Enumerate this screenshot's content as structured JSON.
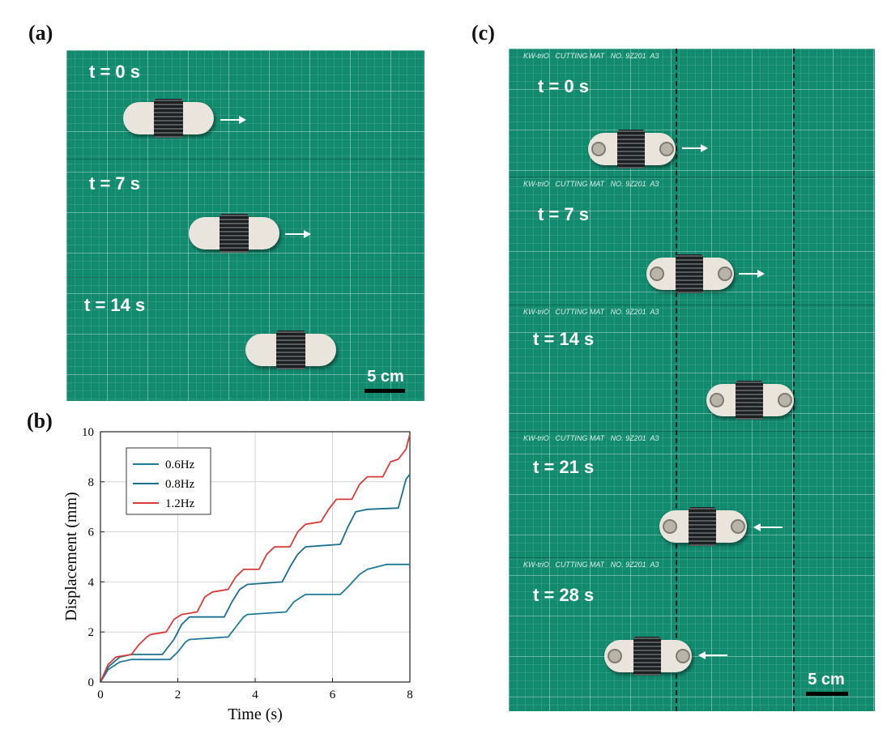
{
  "panel_labels": {
    "a": "(a)",
    "b": "(b)",
    "c": "(c)"
  },
  "panel_a": {
    "times": [
      "t = 0 s",
      "t = 7 s",
      "t = 14 s"
    ],
    "scale_label": "5 cm"
  },
  "panel_c": {
    "times": [
      "t = 0 s",
      "t = 7 s",
      "t = 14 s",
      "t = 21 s",
      "t = 28 s"
    ],
    "mat_text": "KW-triO   CUTTING MAT   NO. 9Z201  A3",
    "scale_label": "5 cm"
  },
  "colors": {
    "mat": "#128a6e",
    "series_0_6": "#1f7a96",
    "series_0_8": "#1b6e8f",
    "series_1_2": "#d83a3a"
  },
  "chart_data": {
    "type": "line",
    "xlabel": "Time (s)",
    "ylabel": "Displacement (mm)",
    "xlim": [
      0,
      8
    ],
    "ylim": [
      0,
      10
    ],
    "xticks": [
      "0",
      "2",
      "4",
      "6",
      "8"
    ],
    "yticks": [
      "0",
      "2",
      "4",
      "6",
      "8",
      "10"
    ],
    "grid": true,
    "legend_position": "top-left",
    "series": [
      {
        "name": "0.6Hz",
        "color": "#1f7a96",
        "x": [
          0,
          0.2,
          0.5,
          0.8,
          1.8,
          2.0,
          2.2,
          2.3,
          3.3,
          3.5,
          3.7,
          3.8,
          4.8,
          5.0,
          5.2,
          5.3,
          6.2,
          6.4,
          6.7,
          6.9,
          7.4,
          8.0
        ],
        "y": [
          0,
          0.5,
          0.8,
          0.9,
          0.9,
          1.2,
          1.6,
          1.7,
          1.8,
          2.2,
          2.6,
          2.7,
          2.8,
          3.2,
          3.4,
          3.5,
          3.5,
          3.8,
          4.3,
          4.5,
          4.7,
          4.7
        ]
      },
      {
        "name": "0.8Hz",
        "color": "#1b6e8f",
        "x": [
          0,
          0.2,
          0.5,
          0.8,
          1.6,
          1.9,
          2.1,
          2.3,
          3.2,
          3.4,
          3.6,
          3.8,
          4.7,
          4.9,
          5.1,
          5.3,
          6.2,
          6.4,
          6.6,
          6.9,
          7.7,
          7.9,
          8.0
        ],
        "y": [
          0,
          0.6,
          1.0,
          1.1,
          1.1,
          1.7,
          2.3,
          2.6,
          2.6,
          3.2,
          3.7,
          3.9,
          4.0,
          4.6,
          5.1,
          5.4,
          5.5,
          6.2,
          6.8,
          6.9,
          6.95,
          8.1,
          8.3
        ]
      },
      {
        "name": "1.2Hz",
        "color": "#d83a3a",
        "x": [
          0,
          0.2,
          0.4,
          0.8,
          1.0,
          1.2,
          1.3,
          1.7,
          1.9,
          2.1,
          2.5,
          2.7,
          2.9,
          3.3,
          3.5,
          3.7,
          4.1,
          4.3,
          4.5,
          4.9,
          5.1,
          5.3,
          5.7,
          5.9,
          6.1,
          6.5,
          6.7,
          6.9,
          7.3,
          7.5,
          7.7,
          7.9,
          8.0
        ],
        "y": [
          0,
          0.7,
          1.0,
          1.1,
          1.5,
          1.8,
          1.9,
          2.0,
          2.5,
          2.7,
          2.8,
          3.4,
          3.6,
          3.7,
          4.2,
          4.5,
          4.5,
          5.1,
          5.4,
          5.4,
          6.0,
          6.3,
          6.4,
          6.9,
          7.3,
          7.3,
          7.9,
          8.2,
          8.2,
          8.8,
          8.9,
          9.3,
          9.9
        ]
      }
    ]
  }
}
